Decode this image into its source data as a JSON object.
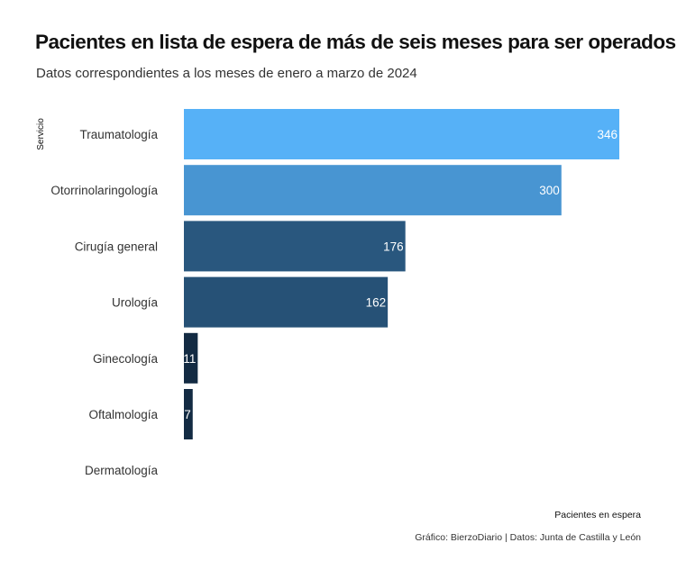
{
  "title": "Pacientes en lista de espera de más de seis meses para ser operados",
  "subtitle": "Datos correspondientes a los meses de enero a marzo de 2024",
  "caption": "Gráfico: BierzoDiario | Datos: Junta de Castilla y León",
  "colors": {
    "low": "#132b43",
    "high": "#56b1f7",
    "label": "#ffffff",
    "tick_text": "#333333"
  },
  "chart_data": {
    "type": "bar",
    "orientation": "horizontal",
    "categories": [
      "Traumatología",
      "Otorrinolaringología",
      "Cirugía general",
      "Urología",
      "Ginecología",
      "Oftalmología",
      "Dermatología"
    ],
    "values": [
      346,
      300,
      176,
      162,
      11,
      7,
      0
    ],
    "data_labels": [
      "346",
      "300",
      "176",
      "162",
      "11",
      "7",
      ""
    ],
    "xlabel": "Pacientes en espera",
    "ylabel": "Servicio",
    "xlim": [
      0,
      346
    ],
    "grid": false,
    "legend": "none"
  }
}
